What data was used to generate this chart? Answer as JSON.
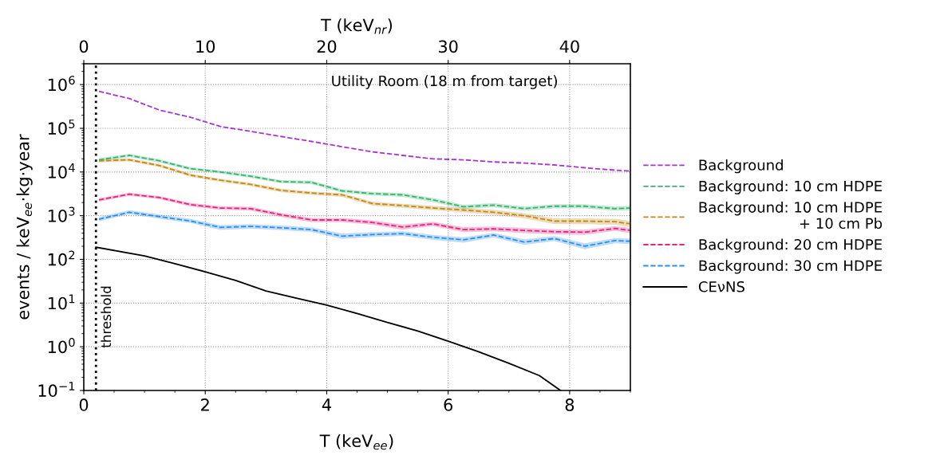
{
  "chart_data": {
    "type": "line",
    "xlabel": "T (keV$_{ee}$)",
    "x2label": "T (keV$_{nr}$)",
    "ylabel": "events / keV$_{ee}$·kg·year",
    "log": "y",
    "xlim": [
      0,
      9
    ],
    "xticks": [
      0,
      2,
      4,
      6,
      8
    ],
    "x2lim": [
      0,
      45
    ],
    "x2ticks": [
      0,
      10,
      20,
      30,
      40
    ],
    "ylim": [
      0.1,
      3000000
    ],
    "yticks": [
      {
        "value": 0.1,
        "label": "10$^{−1}$"
      },
      {
        "value": 1,
        "label": "10$^{0}$"
      },
      {
        "value": 10,
        "label": "10$^{1}$"
      },
      {
        "value": 100,
        "label": "10$^{2}$"
      },
      {
        "value": 1000,
        "label": "10$^{3}$"
      },
      {
        "value": 10000,
        "label": "10$^{4}$"
      },
      {
        "value": 100000,
        "label": "10$^{5}$"
      },
      {
        "value": 1000000,
        "label": "10$^{6}$"
      }
    ],
    "grid": true,
    "legend": "right",
    "marker": "none",
    "annotations": [
      "Utility Room (18 m from target)"
    ],
    "ref_lines": [
      {
        "axis": "x",
        "value": 0.2,
        "label": "threshold",
        "color": "#000000",
        "line_style": "dotted"
      }
    ],
    "x": [
      0.25,
      0.75,
      1.25,
      1.75,
      2.25,
      2.75,
      3.25,
      3.75,
      4.25,
      4.75,
      5.25,
      5.75,
      6.25,
      6.75,
      7.25,
      7.75,
      8.25,
      8.75,
      9.0
    ],
    "series": [
      {
        "name": "Background",
        "color": "#a634d8",
        "line_style": "dashed",
        "values": [
          700000,
          480000,
          260000,
          180000,
          110000,
          85000,
          65000,
          50000,
          38000,
          29000,
          24000,
          20000,
          19000,
          17000,
          16000,
          14500,
          12500,
          11000,
          10500
        ]
      },
      {
        "name": "Background: 10 cm HDPE",
        "color": "#3cb371",
        "line_style": "dashed",
        "values": [
          19000,
          24000,
          18000,
          12000,
          10000,
          8000,
          6000,
          5800,
          3700,
          3200,
          3000,
          2300,
          1600,
          1750,
          1450,
          1650,
          1650,
          1450,
          1500
        ],
        "lower": [
          17500,
          22000,
          16500,
          11000,
          9200,
          7300,
          5500,
          5300,
          3350,
          2900,
          2700,
          2050,
          1420,
          1560,
          1290,
          1470,
          1470,
          1290,
          1340
        ],
        "upper": [
          20600,
          26000,
          19500,
          13000,
          10800,
          8700,
          6500,
          6300,
          4050,
          3500,
          3300,
          2550,
          1780,
          1950,
          1620,
          1840,
          1840,
          1620,
          1680
        ]
      },
      {
        "name": "Background: 10 cm HDPE\n+ 10 cm Pb",
        "color": "#c08a1a",
        "line_style": "dashed",
        "values": [
          18000,
          19000,
          14000,
          8500,
          6500,
          5200,
          3800,
          3300,
          3000,
          1900,
          1700,
          1500,
          1350,
          1200,
          1000,
          750,
          750,
          730,
          650
        ],
        "lower": [
          16600,
          17500,
          12900,
          7800,
          5950,
          4750,
          3450,
          3000,
          2700,
          1700,
          1520,
          1330,
          1190,
          1050,
          870,
          640,
          640,
          620,
          550
        ],
        "upper": [
          19500,
          20600,
          15200,
          9200,
          7050,
          5650,
          4150,
          3600,
          3300,
          2100,
          1880,
          1680,
          1520,
          1360,
          1140,
          870,
          870,
          850,
          760
        ]
      },
      {
        "name": "Background: 20 cm HDPE",
        "color": "#e0287f",
        "line_style": "dashed",
        "values": [
          2300,
          3100,
          2600,
          1800,
          1500,
          1450,
          1050,
          800,
          800,
          700,
          550,
          650,
          480,
          500,
          460,
          430,
          420,
          510,
          460
        ],
        "lower": [
          2100,
          2850,
          2380,
          1640,
          1360,
          1310,
          940,
          710,
          710,
          620,
          480,
          575,
          420,
          440,
          400,
          375,
          365,
          450,
          400
        ],
        "upper": [
          2500,
          3360,
          2830,
          1970,
          1650,
          1600,
          1160,
          890,
          890,
          785,
          625,
          730,
          545,
          565,
          525,
          490,
          480,
          575,
          525
        ]
      },
      {
        "name": "Background: 30 cm HDPE",
        "color": "#2b8ff0",
        "line_style": "dashed",
        "values": [
          830,
          1200,
          950,
          760,
          540,
          570,
          530,
          480,
          340,
          370,
          390,
          320,
          280,
          360,
          250,
          300,
          200,
          270,
          260
        ],
        "lower": [
          740,
          1080,
          850,
          680,
          475,
          505,
          470,
          425,
          295,
          325,
          345,
          280,
          242,
          318,
          215,
          262,
          170,
          235,
          225
        ],
        "upper": [
          925,
          1330,
          1060,
          850,
          610,
          640,
          595,
          540,
          390,
          420,
          440,
          365,
          322,
          405,
          290,
          342,
          233,
          308,
          298
        ]
      },
      {
        "name": "CEνNS",
        "color": "#000000",
        "line_style": "solid",
        "x": [
          0.2,
          1,
          1.5,
          2,
          2.5,
          3,
          3.5,
          4,
          4.5,
          5,
          5.5,
          6,
          6.5,
          7,
          7.5,
          7.85
        ],
        "values": [
          190,
          120,
          80,
          52,
          33,
          19,
          13,
          9,
          5.8,
          3.6,
          2.3,
          1.35,
          0.77,
          0.42,
          0.22,
          0.1
        ]
      }
    ]
  }
}
